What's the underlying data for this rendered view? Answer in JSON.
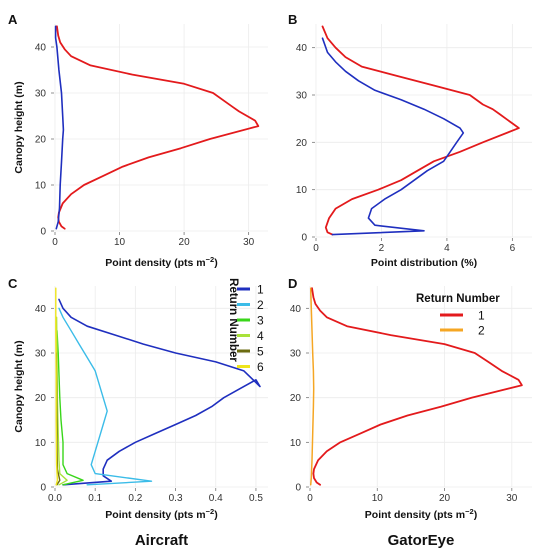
{
  "figure": {
    "panels": [
      {
        "id": "A",
        "label": "A",
        "type": "line",
        "xlabel_prefix": "Point density (pts m",
        "xlabel_sup": "−2",
        "xlabel_suffix": ")",
        "ylabel": "Canopy height (m)",
        "xlim": [
          0,
          33
        ],
        "ylim": [
          0,
          45
        ],
        "xticks": [
          0,
          10,
          20,
          30
        ],
        "yticks": [
          0,
          10,
          20,
          30,
          40
        ],
        "xtick_labels": [
          "0",
          "10",
          "20",
          "30"
        ],
        "ytick_labels": [
          "0",
          "10",
          "20",
          "30",
          "40"
        ],
        "grid": true,
        "series": [
          {
            "color": "#e31a1c",
            "width": 1.8,
            "x": [
              1.5,
              1.0,
              0.6,
              0.5,
              0.6,
              1.2,
              2.5,
              4.5,
              7.5,
              10.5,
              14.5,
              19.5,
              24,
              31.5,
              31,
              28.5,
              27.5,
              26.5,
              24.5,
              20,
              12,
              5.5,
              2.5,
              1.5,
              0.8,
              0.5,
              0.3
            ],
            "y": [
              0.5,
              1,
              2,
              3,
              4,
              6,
              8,
              10,
              12,
              14,
              16,
              18,
              20,
              22.8,
              24,
              26,
              27,
              28,
              30,
              32,
              34,
              36,
              38,
              39.5,
              41,
              42.5,
              44.5
            ]
          },
          {
            "color": "#1f2fbf",
            "width": 1.6,
            "x": [
              0.2,
              0.5,
              0.7,
              0.8,
              1.0,
              1.2,
              1.3,
              1.2,
              1.0,
              0.6,
              0.3,
              0.1,
              0.1
            ],
            "y": [
              0.5,
              2,
              5,
              10,
              15,
              20,
              22,
              25,
              30,
              35,
              40,
              42,
              44.5
            ]
          }
        ]
      },
      {
        "id": "B",
        "label": "B",
        "type": "line",
        "xlabel": "Point distribution (%)",
        "xlim": [
          0,
          6.6
        ],
        "ylim": [
          0,
          45
        ],
        "xticks": [
          0,
          2,
          4,
          6
        ],
        "yticks": [
          0,
          10,
          20,
          30,
          40
        ],
        "xtick_labels": [
          "0",
          "2",
          "4",
          "6"
        ],
        "ytick_labels": [
          "0",
          "10",
          "20",
          "30",
          "40"
        ],
        "grid": true,
        "series": [
          {
            "color": "#e31a1c",
            "width": 1.8,
            "x": [
              0.5,
              0.35,
              0.3,
              0.4,
              0.6,
              1.1,
              1.9,
              2.6,
              3.1,
              3.6,
              4.4,
              5.1,
              6.2,
              6.0,
              5.6,
              5.4,
              5.1,
              4.7,
              3.6,
              2.5,
              1.4,
              0.9,
              0.6,
              0.35,
              0.2
            ],
            "y": [
              0.5,
              1,
              2,
              4,
              6,
              8,
              10,
              12,
              14,
              16,
              18,
              20,
              23,
              24,
              26,
              27,
              28,
              30,
              32,
              34,
              36,
              38,
              40,
              42,
              44.5
            ]
          },
          {
            "color": "#1f2fbf",
            "width": 1.6,
            "x": [
              0.5,
              3.3,
              1.8,
              1.6,
              1.7,
              2.1,
              2.6,
              3.0,
              3.4,
              3.9,
              4.1,
              4.3,
              4.5,
              4.4,
              3.9,
              3.3,
              2.6,
              1.8,
              1.3,
              0.9,
              0.6,
              0.35,
              0.2
            ],
            "y": [
              0.5,
              1.3,
              2.5,
              4,
              6,
              8,
              10,
              12,
              14,
              16,
              18,
              20,
              22,
              23,
              25,
              27,
              29,
              31,
              33,
              35,
              37,
              39,
              42
            ],
            "dashed": false
          }
        ]
      },
      {
        "id": "C",
        "label": "C",
        "type": "line",
        "xlabel_prefix": "Point density (pts m",
        "xlabel_sup": "−2",
        "xlabel_suffix": ")",
        "ylabel": "Canopy height (m)",
        "xlim": [
          0,
          0.53
        ],
        "ylim": [
          0,
          45
        ],
        "xticks": [
          0,
          0.1,
          0.2,
          0.3,
          0.4,
          0.5
        ],
        "yticks": [
          0,
          10,
          20,
          30,
          40
        ],
        "xtick_labels": [
          "0.0",
          "0.1",
          "0.2",
          "0.3",
          "0.4",
          "0.5"
        ],
        "ytick_labels": [
          "0",
          "10",
          "20",
          "30",
          "40"
        ],
        "grid": true,
        "bottom_title": "Aircraft",
        "legend": {
          "title": "Return Number",
          "title_vertical": true,
          "entries": [
            "1",
            "2",
            "3",
            "4",
            "5",
            "6"
          ]
        },
        "series": [
          {
            "name": "1",
            "color": "#1f2fbf",
            "width": 1.6,
            "x": [
              0.02,
              0.14,
              0.12,
              0.12,
              0.13,
              0.16,
              0.2,
              0.25,
              0.3,
              0.35,
              0.39,
              0.42,
              0.46,
              0.5,
              0.51,
              0.47,
              0.4,
              0.3,
              0.22,
              0.15,
              0.08,
              0.04,
              0.02,
              0.01
            ],
            "y": [
              0.5,
              1.3,
              2.5,
              4,
              6,
              8,
              10,
              12,
              14,
              16,
              18,
              20,
              22,
              24,
              22.5,
              26,
              28,
              30,
              32,
              34,
              36,
              38,
              40,
              42
            ]
          },
          {
            "name": "2",
            "color": "#3bbce8",
            "width": 1.4,
            "x": [
              0.08,
              0.24,
              0.1,
              0.09,
              0.1,
              0.11,
              0.12,
              0.13,
              0.12,
              0.11,
              0.1,
              0.08,
              0.06,
              0.04,
              0.02,
              0.01
            ],
            "y": [
              0.5,
              1.3,
              3,
              5,
              8,
              11,
              14,
              17,
              20,
              23,
              26,
              29,
              32,
              35,
              38,
              40
            ]
          },
          {
            "name": "3",
            "color": "#39d61a",
            "width": 1.4,
            "x": [
              0.02,
              0.07,
              0.03,
              0.02,
              0.02,
              0.015,
              0.012,
              0.01,
              0.008,
              0.005
            ],
            "y": [
              0.5,
              1.5,
              3,
              5,
              10,
              15,
              20,
              25,
              30,
              35
            ]
          },
          {
            "name": "4",
            "color": "#a9e23a",
            "width": 1.4,
            "x": [
              0.01,
              0.03,
              0.012,
              0.01,
              0.008,
              0.006,
              0.005,
              0.004
            ],
            "y": [
              0.5,
              1.5,
              3,
              6,
              12,
              20,
              30,
              38
            ]
          },
          {
            "name": "5",
            "color": "#6b6b10",
            "width": 1.4,
            "x": [
              0.005,
              0.012,
              0.006,
              0.005,
              0.004,
              0.003
            ],
            "y": [
              0.5,
              1.5,
              4,
              10,
              20,
              30
            ]
          },
          {
            "name": "6",
            "color": "#efe51c",
            "width": 1.4,
            "x": [
              0.003,
              0.006,
              0.004,
              0.003,
              0.003,
              0.002,
              0.002
            ],
            "y": [
              0.5,
              1.5,
              5,
              15,
              25,
              35,
              44.5
            ]
          }
        ]
      },
      {
        "id": "D",
        "label": "D",
        "type": "line",
        "xlabel_prefix": "Point density (pts m",
        "xlabel_sup": "−2",
        "xlabel_suffix": ")",
        "xlim": [
          0,
          33
        ],
        "ylim": [
          0,
          45
        ],
        "xticks": [
          0,
          10,
          20,
          30
        ],
        "yticks": [
          0,
          10,
          20,
          30,
          40
        ],
        "xtick_labels": [
          "0",
          "10",
          "20",
          "30"
        ],
        "ytick_labels": [
          "0",
          "10",
          "20",
          "30",
          "40"
        ],
        "grid": true,
        "bottom_title": "GatorEye",
        "legend": {
          "title": "Return Number",
          "title_vertical": false,
          "entries": [
            "1",
            "2"
          ]
        },
        "series": [
          {
            "name": "1",
            "color": "#e31a1c",
            "width": 1.8,
            "x": [
              1.5,
              1.0,
              0.6,
              0.5,
              0.6,
              1.2,
              2.5,
              4.5,
              7.5,
              10.5,
              14.5,
              19.5,
              24,
              31.5,
              31,
              28.5,
              27.5,
              26.5,
              24.5,
              20,
              12,
              5.5,
              2.5,
              1.5,
              0.8,
              0.5,
              0.3
            ],
            "y": [
              0.5,
              1,
              2,
              3,
              4,
              6,
              8,
              10,
              12,
              14,
              16,
              18,
              20,
              22.8,
              24,
              26,
              27,
              28,
              30,
              32,
              34,
              36,
              38,
              39.5,
              41,
              42.5,
              44.5
            ]
          },
          {
            "name": "2",
            "color": "#f5a623",
            "width": 1.5,
            "x": [
              0.1,
              0.2,
              0.3,
              0.4,
              0.5,
              0.55,
              0.5,
              0.4,
              0.3,
              0.2,
              0.1
            ],
            "y": [
              0.5,
              2,
              6,
              12,
              18,
              22,
              26,
              30,
              35,
              40,
              44.5
            ]
          }
        ]
      }
    ]
  }
}
